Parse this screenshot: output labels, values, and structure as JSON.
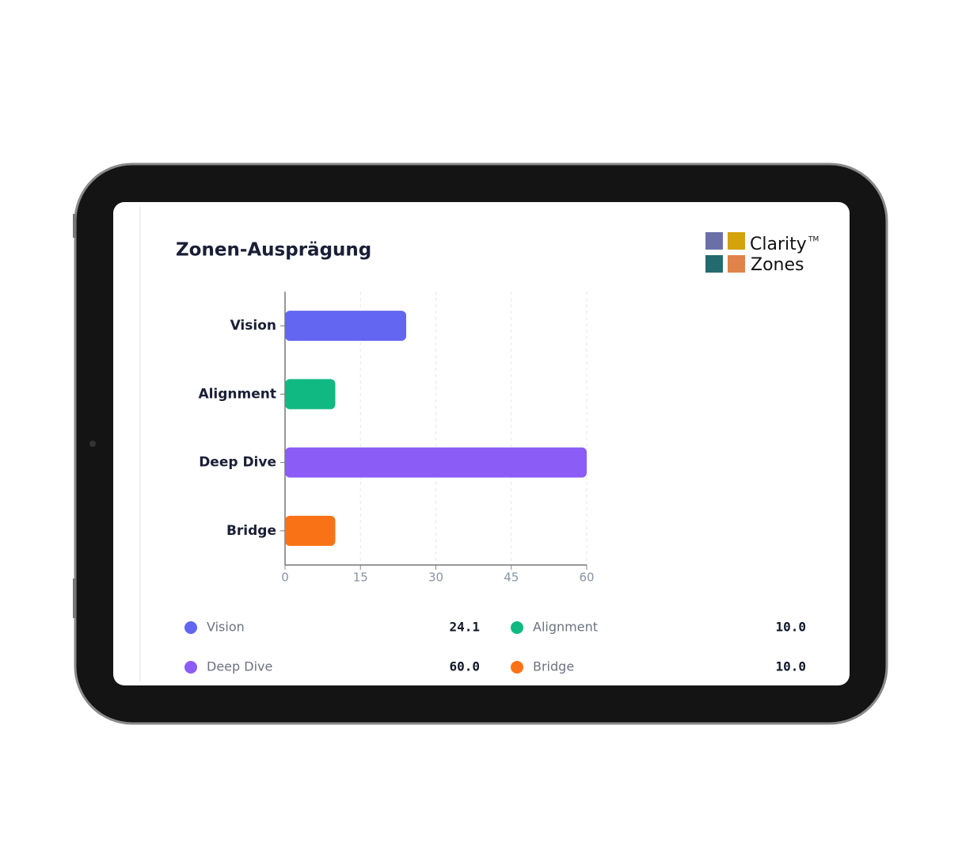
{
  "chart_data": {
    "type": "bar",
    "orientation": "horizontal",
    "title": "Zonen-Ausprägung",
    "categories": [
      "Vision",
      "Alignment",
      "Deep Dive",
      "Bridge"
    ],
    "values": [
      24.1,
      10,
      60,
      10
    ],
    "value_labels": [
      "24.1",
      "10.0",
      "60.0",
      "10.0"
    ],
    "colors": [
      "#6366f1",
      "#10b981",
      "#8b5cf6",
      "#f97316"
    ],
    "xlim": [
      0,
      60
    ],
    "xticks": [
      0,
      15,
      30,
      45,
      60
    ],
    "grid": true
  },
  "logo": {
    "line1": "Clarity",
    "mark": "TM",
    "line2": "Zones"
  }
}
